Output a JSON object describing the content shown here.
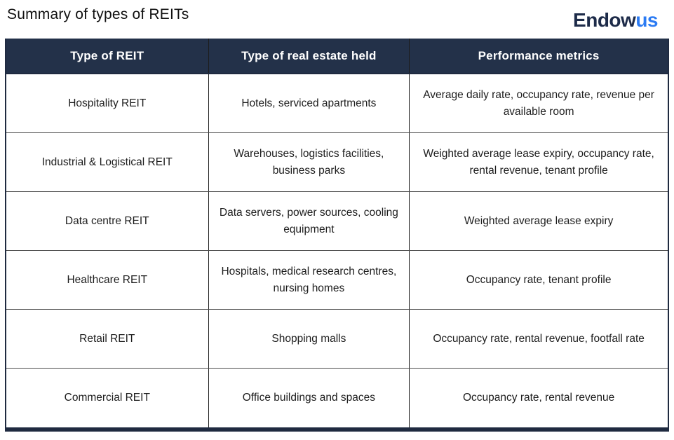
{
  "page": {
    "title": "Summary of types of REITs"
  },
  "logo": {
    "part1": "Endow",
    "part2": "us"
  },
  "table": {
    "headers": [
      "Type of REIT",
      "Type of real estate held",
      "Performance metrics"
    ],
    "rows": [
      [
        "Hospitality REIT",
        "Hotels, serviced apartments",
        "Average daily rate, occupancy rate, revenue per available room"
      ],
      [
        "Industrial & Logistical REIT",
        "Warehouses, logistics facilities, business parks",
        "Weighted average lease expiry, occupancy rate, rental revenue, tenant profile"
      ],
      [
        "Data centre REIT",
        "Data servers, power sources, cooling equipment",
        "Weighted average lease expiry"
      ],
      [
        "Healthcare REIT",
        "Hospitals, medical research centres, nursing homes",
        "Occupancy rate, tenant profile"
      ],
      [
        "Retail REIT",
        "Shopping malls",
        "Occupancy rate, rental revenue, footfall rate"
      ],
      [
        "Commercial REIT",
        "Office buildings and spaces",
        "Occupancy rate, rental revenue"
      ]
    ]
  },
  "colors": {
    "header_bg": "#233149",
    "header_text": "#ffffff",
    "body_text": "#1d1d1d",
    "outer_border": "#1f2a40",
    "logo_navy": "#1d2b49",
    "logo_blue": "#2b7bf3",
    "page_bg": "#ffffff"
  }
}
